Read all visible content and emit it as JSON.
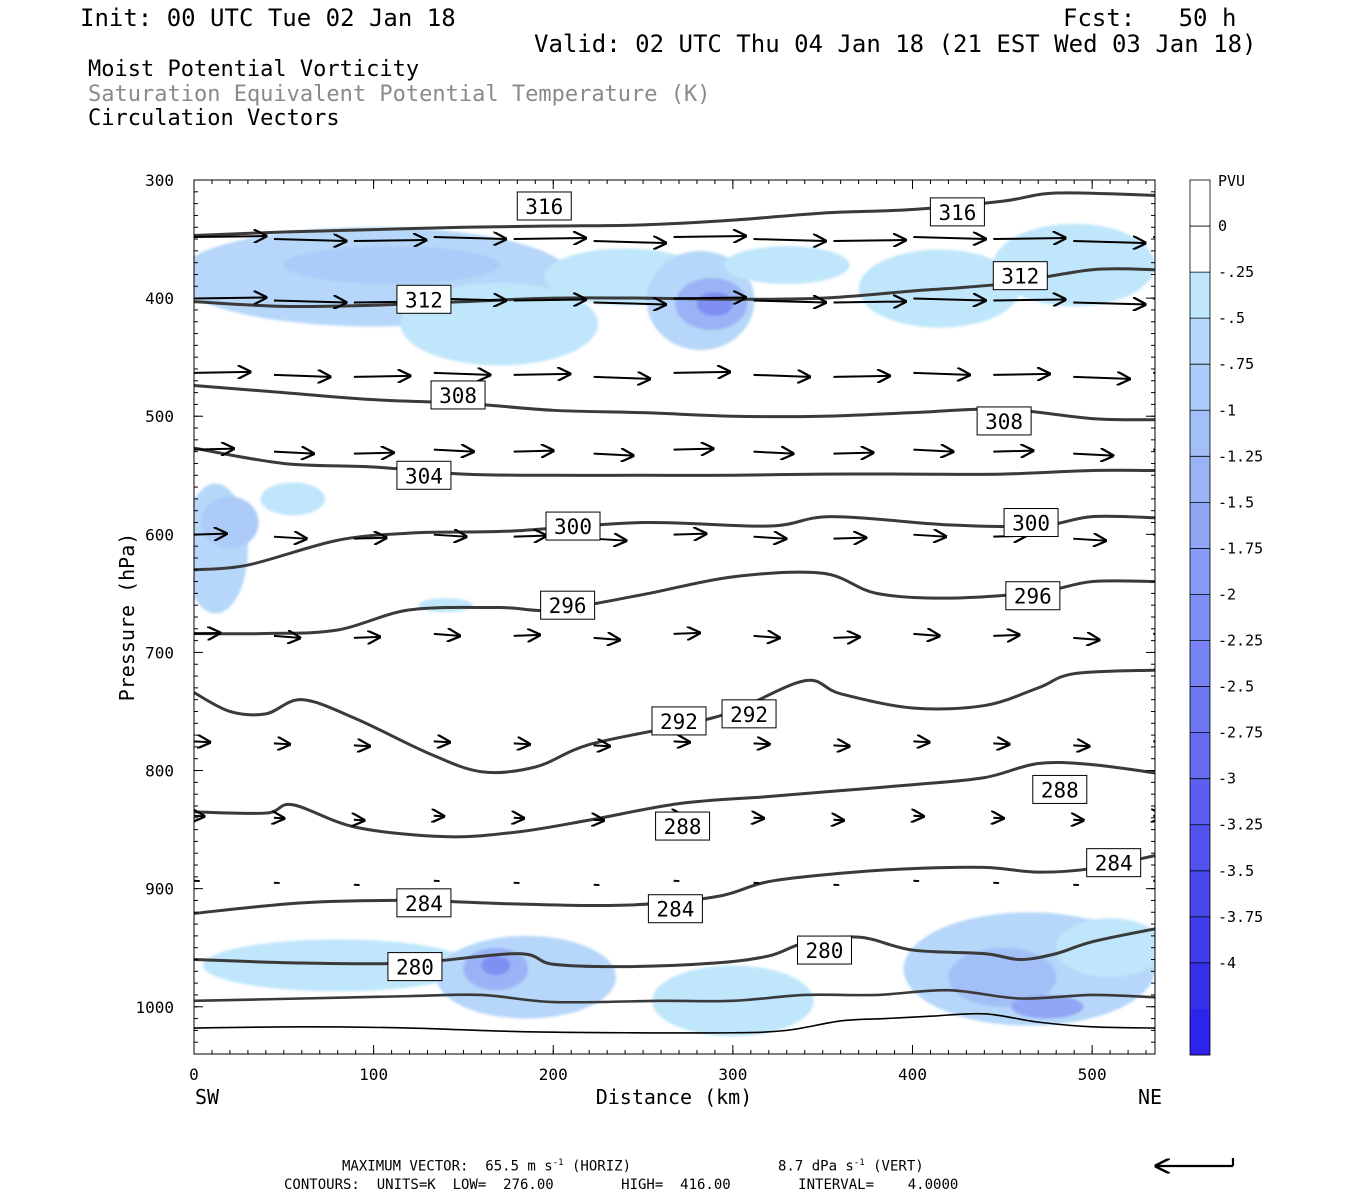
{
  "header": {
    "init": "Init: 00 UTC Tue 02 Jan 18",
    "fcst": "Fcst:   50 h",
    "valid": "Valid: 02 UTC Thu 04 Jan 18 (21 EST Wed 03 Jan 18)",
    "field1": "Moist Potential Vorticity",
    "field2": "Saturation Equivalent Potential Temperature (K)",
    "field3": "Circulation Vectors"
  },
  "colors": {
    "field2_text": "#8a8a8a",
    "contour": "#3a3a3a",
    "terrain": "#000000",
    "pv_levels": [
      "#ffffff",
      "#ffffff",
      "#bfe6fb",
      "#b6d7f9",
      "#accbf8",
      "#a3bff7",
      "#9ab3f6",
      "#91a7f5",
      "#889bf4",
      "#7f8ff3",
      "#7683f2",
      "#6d77f1",
      "#646bf0",
      "#5b5ff0",
      "#5253ef",
      "#4947ee",
      "#403bed",
      "#372fec",
      "#2e23eb",
      "#1f0ff0"
    ]
  },
  "chart_data": {
    "type": "cross-section",
    "xlabel": "Distance (km)",
    "ylabel": "Pressure (hPa)",
    "x_end_left": "SW",
    "x_end_right": "NE",
    "xlim": [
      0,
      535
    ],
    "ylim": [
      1040,
      300
    ],
    "x_ticks": [
      0,
      100,
      200,
      300,
      400,
      500
    ],
    "y_ticks": [
      300,
      400,
      500,
      600,
      700,
      800,
      900,
      1000
    ],
    "colorbar": {
      "title": "PVU",
      "labels": [
        "0",
        "-.25",
        "-.5",
        "-.75",
        "-1",
        "-1.25",
        "-1.5",
        "-1.75",
        "-2",
        "-2.25",
        "-2.5",
        "-2.75",
        "-3",
        "-3.25",
        "-3.5",
        "-3.75",
        "-4"
      ],
      "levels": [
        0.25,
        0,
        -0.25,
        -0.5,
        -0.75,
        -1,
        -1.25,
        -1.5,
        -1.75,
        -2,
        -2.25,
        -2.5,
        -2.75,
        -3,
        -3.25,
        -3.5,
        -3.75,
        -4,
        -4.25
      ]
    },
    "contours": [
      {
        "value": 316,
        "points": [
          [
            0,
            347
          ],
          [
            50,
            344
          ],
          [
            100,
            342
          ],
          [
            150,
            340
          ],
          [
            200,
            339
          ],
          [
            250,
            338
          ],
          [
            300,
            334
          ],
          [
            350,
            328
          ],
          [
            400,
            325
          ],
          [
            450,
            318
          ],
          [
            480,
            311
          ],
          [
            535,
            313
          ]
        ]
      },
      {
        "value": 312,
        "points": [
          [
            0,
            403
          ],
          [
            50,
            407
          ],
          [
            100,
            406
          ],
          [
            150,
            403
          ],
          [
            200,
            400
          ],
          [
            250,
            400
          ],
          [
            300,
            401
          ],
          [
            350,
            400
          ],
          [
            400,
            394
          ],
          [
            450,
            388
          ],
          [
            500,
            376
          ],
          [
            535,
            376
          ]
        ]
      },
      {
        "value": 308,
        "points": [
          [
            0,
            474
          ],
          [
            50,
            480
          ],
          [
            100,
            486
          ],
          [
            150,
            489
          ],
          [
            200,
            495
          ],
          [
            250,
            497
          ],
          [
            300,
            500
          ],
          [
            350,
            500
          ],
          [
            400,
            497
          ],
          [
            450,
            494
          ],
          [
            500,
            502
          ],
          [
            535,
            503
          ]
        ]
      },
      {
        "value": 304,
        "points": [
          [
            0,
            527
          ],
          [
            50,
            540
          ],
          [
            100,
            543
          ],
          [
            150,
            549
          ],
          [
            200,
            550
          ],
          [
            250,
            550
          ],
          [
            300,
            550
          ],
          [
            350,
            549
          ],
          [
            400,
            549
          ],
          [
            450,
            549
          ],
          [
            500,
            546
          ],
          [
            535,
            546
          ]
        ]
      },
      {
        "value": 300,
        "points": [
          [
            0,
            630
          ],
          [
            30,
            626
          ],
          [
            80,
            605
          ],
          [
            120,
            599
          ],
          [
            150,
            598
          ],
          [
            180,
            597
          ],
          [
            250,
            590
          ],
          [
            320,
            593
          ],
          [
            355,
            585
          ],
          [
            420,
            592
          ],
          [
            470,
            593
          ],
          [
            500,
            585
          ],
          [
            535,
            586
          ]
        ]
      },
      {
        "value": 296,
        "points": [
          [
            0,
            684
          ],
          [
            40,
            684
          ],
          [
            80,
            681
          ],
          [
            120,
            664
          ],
          [
            170,
            662
          ],
          [
            200,
            664
          ],
          [
            250,
            651
          ],
          [
            300,
            636
          ],
          [
            350,
            633
          ],
          [
            380,
            650
          ],
          [
            420,
            654
          ],
          [
            470,
            649
          ],
          [
            500,
            640
          ],
          [
            535,
            640
          ]
        ]
      },
      {
        "value": 292,
        "points": [
          [
            0,
            734
          ],
          [
            20,
            750
          ],
          [
            40,
            752
          ],
          [
            60,
            740
          ],
          [
            90,
            756
          ],
          [
            130,
            785
          ],
          [
            160,
            801
          ],
          [
            190,
            797
          ],
          [
            220,
            778
          ],
          [
            270,
            762
          ],
          [
            300,
            750
          ],
          [
            340,
            724
          ],
          [
            360,
            735
          ],
          [
            400,
            747
          ],
          [
            440,
            745
          ],
          [
            470,
            730
          ],
          [
            490,
            718
          ],
          [
            535,
            715
          ]
        ]
      },
      {
        "value": 288,
        "points": [
          [
            0,
            835
          ],
          [
            40,
            836
          ],
          [
            55,
            829
          ],
          [
            90,
            848
          ],
          [
            140,
            856
          ],
          [
            180,
            852
          ],
          [
            220,
            842
          ],
          [
            270,
            828
          ],
          [
            320,
            822
          ],
          [
            360,
            817
          ],
          [
            400,
            812
          ],
          [
            440,
            806
          ],
          [
            470,
            794
          ],
          [
            500,
            795
          ],
          [
            535,
            802
          ]
        ]
      },
      {
        "value": 284,
        "points": [
          [
            0,
            921
          ],
          [
            60,
            912
          ],
          [
            120,
            910
          ],
          [
            180,
            913
          ],
          [
            240,
            914
          ],
          [
            290,
            907
          ],
          [
            320,
            894
          ],
          [
            360,
            887
          ],
          [
            400,
            883
          ],
          [
            440,
            882
          ],
          [
            470,
            886
          ],
          [
            500,
            883
          ],
          [
            535,
            872
          ]
        ]
      },
      {
        "value": 280,
        "points": [
          [
            0,
            960
          ],
          [
            60,
            963
          ],
          [
            120,
            963
          ],
          [
            180,
            955
          ],
          [
            200,
            964
          ],
          [
            240,
            966
          ],
          [
            290,
            963
          ],
          [
            320,
            957
          ],
          [
            340,
            946
          ],
          [
            370,
            941
          ],
          [
            400,
            952
          ],
          [
            440,
            955
          ],
          [
            460,
            960
          ],
          [
            480,
            955
          ],
          [
            500,
            945
          ],
          [
            535,
            934
          ]
        ]
      }
    ],
    "contour_labels": [
      {
        "value": "316",
        "at": [
          195,
          322
        ]
      },
      {
        "value": "316",
        "at": [
          425,
          327
        ]
      },
      {
        "value": "312",
        "at": [
          128,
          401
        ]
      },
      {
        "value": "312",
        "at": [
          460,
          381
        ]
      },
      {
        "value": "308",
        "at": [
          147,
          482
        ]
      },
      {
        "value": "308",
        "at": [
          451,
          504
        ]
      },
      {
        "value": "304",
        "at": [
          128,
          550
        ]
      },
      {
        "value": "300",
        "at": [
          211,
          593
        ]
      },
      {
        "value": "300",
        "at": [
          466,
          590
        ]
      },
      {
        "value": "296",
        "at": [
          208,
          660
        ]
      },
      {
        "value": "296",
        "at": [
          467,
          652
        ]
      },
      {
        "value": "292",
        "at": [
          270,
          758
        ]
      },
      {
        "value": "292",
        "at": [
          309,
          752
        ]
      },
      {
        "value": "288",
        "at": [
          272,
          847
        ]
      },
      {
        "value": "288",
        "at": [
          482,
          816
        ]
      },
      {
        "value": "284",
        "at": [
          128,
          912
        ]
      },
      {
        "value": "284",
        "at": [
          268,
          917
        ]
      },
      {
        "value": "284",
        "at": [
          512,
          878
        ]
      },
      {
        "value": "280",
        "at": [
          123,
          966
        ]
      },
      {
        "value": "280",
        "at": [
          351,
          952
        ]
      }
    ],
    "vector_rows": [
      {
        "p": 350,
        "len": 1.0
      },
      {
        "p": 402,
        "len": 1.0
      },
      {
        "p": 465,
        "len": 0.78
      },
      {
        "p": 530,
        "len": 0.55
      },
      {
        "p": 602,
        "len": 0.45
      },
      {
        "p": 686,
        "len": 0.36
      },
      {
        "p": 777,
        "len": 0.22
      },
      {
        "p": 840,
        "len": 0.14
      },
      {
        "p": 895,
        "len": 0.08
      }
    ],
    "pv_blobs": [
      {
        "cx": 100,
        "cy": 382,
        "rx": 110,
        "ry": 42,
        "level": -0.5
      },
      {
        "cx": 110,
        "cy": 372,
        "rx": 60,
        "ry": 16,
        "level": -0.75
      },
      {
        "cx": 240,
        "cy": 382,
        "rx": 45,
        "ry": 24,
        "level": -0.25
      },
      {
        "cx": 170,
        "cy": 422,
        "rx": 55,
        "ry": 35,
        "level": -0.25
      },
      {
        "cx": 282,
        "cy": 402,
        "rx": 30,
        "ry": 42,
        "level": -0.5
      },
      {
        "cx": 288,
        "cy": 405,
        "rx": 20,
        "ry": 22,
        "level": -1.25
      },
      {
        "cx": 290,
        "cy": 405,
        "rx": 10,
        "ry": 10,
        "level": -2.0
      },
      {
        "cx": 330,
        "cy": 372,
        "rx": 35,
        "ry": 16,
        "level": -0.25
      },
      {
        "cx": 415,
        "cy": 392,
        "rx": 45,
        "ry": 33,
        "level": -0.25
      },
      {
        "cx": 490,
        "cy": 372,
        "rx": 45,
        "ry": 35,
        "level": -0.25
      },
      {
        "cx": 12,
        "cy": 612,
        "rx": 18,
        "ry": 55,
        "level": -0.5
      },
      {
        "cx": 20,
        "cy": 590,
        "rx": 16,
        "ry": 22,
        "level": -0.75
      },
      {
        "cx": 55,
        "cy": 570,
        "rx": 18,
        "ry": 14,
        "level": -0.25
      },
      {
        "cx": 140,
        "cy": 660,
        "rx": 15,
        "ry": 6,
        "level": -0.25
      },
      {
        "cx": 80,
        "cy": 965,
        "rx": 75,
        "ry": 22,
        "level": -0.25
      },
      {
        "cx": 185,
        "cy": 975,
        "rx": 50,
        "ry": 35,
        "level": -0.5
      },
      {
        "cx": 168,
        "cy": 968,
        "rx": 18,
        "ry": 18,
        "level": -1.25
      },
      {
        "cx": 168,
        "cy": 965,
        "rx": 8,
        "ry": 8,
        "level": -2.0
      },
      {
        "cx": 300,
        "cy": 995,
        "rx": 45,
        "ry": 30,
        "level": -0.25
      },
      {
        "cx": 465,
        "cy": 968,
        "rx": 70,
        "ry": 48,
        "level": -0.5
      },
      {
        "cx": 450,
        "cy": 975,
        "rx": 30,
        "ry": 25,
        "level": -1.0
      },
      {
        "cx": 475,
        "cy": 1000,
        "rx": 20,
        "ry": 10,
        "level": -1.5
      },
      {
        "cx": 510,
        "cy": 950,
        "rx": 30,
        "ry": 25,
        "level": -0.25
      }
    ],
    "terrain": [
      [
        0,
        1018
      ],
      [
        60,
        1017
      ],
      [
        120,
        1018
      ],
      [
        180,
        1021
      ],
      [
        240,
        1022
      ],
      [
        300,
        1022
      ],
      [
        330,
        1020
      ],
      [
        360,
        1012
      ],
      [
        385,
        1010
      ],
      [
        410,
        1008
      ],
      [
        440,
        1006
      ],
      [
        470,
        1013
      ],
      [
        500,
        1017
      ],
      [
        535,
        1018
      ]
    ]
  },
  "footer": {
    "max_vector": "MAXIMUM VECTOR:  65.5 m s",
    "max_vector_sup": "-1",
    "horiz": " (HORIZ)",
    "vert_val": "8.7 dPa s",
    "vert_sup": "-1",
    "vert": " (VERT)",
    "contours": "CONTOURS:  UNITS=K  LOW=  276.00        HIGH=  416.00        INTERVAL=    4.0000"
  }
}
